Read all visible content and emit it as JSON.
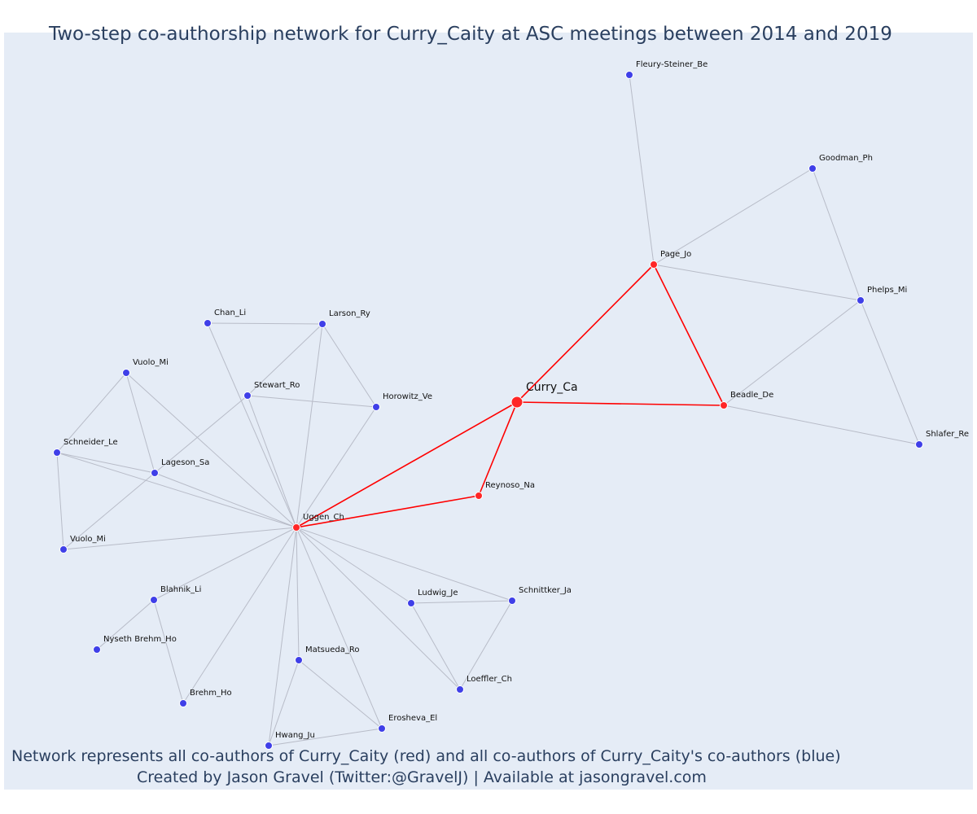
{
  "title": "Two-step co-authorship network for Curry_Caity at ASC meetings between 2014 and 2019",
  "footer": {
    "line1": "Network represents all co-authors of Curry_Caity (red) and all co-authors of Curry_Caity's co-authors (blue)",
    "line2": "Created by Jason Gravel (Twitter:@GravelJ) | Available at jasongravel.com"
  },
  "colors": {
    "background": "#e5ecf6",
    "focal_and_coauthor_nodes": "#ff2626",
    "second_step_nodes": "#3f3fe8",
    "direct_edges": "#ff0000",
    "indirect_edges": "#b8bcc8"
  },
  "chart_data": {
    "type": "network",
    "focal_node": "Curry_Ca",
    "nodes": [
      {
        "id": "Curry_Ca",
        "group": "focal"
      },
      {
        "id": "Page_Jo",
        "group": "coauthor"
      },
      {
        "id": "Beadle_De",
        "group": "coauthor"
      },
      {
        "id": "Reynoso_Na",
        "group": "coauthor"
      },
      {
        "id": "Uggen_Ch",
        "group": "coauthor"
      },
      {
        "id": "Fleury-Steiner_Be",
        "group": "second"
      },
      {
        "id": "Goodman_Ph",
        "group": "second"
      },
      {
        "id": "Phelps_Mi",
        "group": "second"
      },
      {
        "id": "Shlafer_Re",
        "group": "second"
      },
      {
        "id": "Chan_Li",
        "group": "second"
      },
      {
        "id": "Larson_Ry",
        "group": "second"
      },
      {
        "id": "Stewart_Ro",
        "group": "second"
      },
      {
        "id": "Horowitz_Ve",
        "group": "second"
      },
      {
        "id": "Vuolo_Mi",
        "group": "second"
      },
      {
        "id": "Schneider_Le",
        "group": "second"
      },
      {
        "id": "Lageson_Sa",
        "group": "second"
      },
      {
        "id": "Vuolo_Mi_2",
        "label": "Vuolo_Mi",
        "group": "second"
      },
      {
        "id": "Blahnik_Li",
        "group": "second"
      },
      {
        "id": "Nyseth Brehm_Ho",
        "group": "second"
      },
      {
        "id": "Brehm_Ho",
        "group": "second"
      },
      {
        "id": "Matsueda_Ro",
        "group": "second"
      },
      {
        "id": "Hwang_Ju",
        "group": "second"
      },
      {
        "id": "Erosheva_El",
        "group": "second"
      },
      {
        "id": "Ludwig_Je",
        "group": "second"
      },
      {
        "id": "Schnittker_Ja",
        "group": "second"
      },
      {
        "id": "Loeffler_Ch",
        "group": "second"
      }
    ],
    "edges": [
      [
        "Curry_Ca",
        "Page_Jo"
      ],
      [
        "Curry_Ca",
        "Beadle_De"
      ],
      [
        "Curry_Ca",
        "Reynoso_Na"
      ],
      [
        "Curry_Ca",
        "Uggen_Ch"
      ],
      [
        "Page_Jo",
        "Beadle_De"
      ],
      [
        "Reynoso_Na",
        "Uggen_Ch"
      ],
      [
        "Page_Jo",
        "Fleury-Steiner_Be"
      ],
      [
        "Page_Jo",
        "Goodman_Ph"
      ],
      [
        "Page_Jo",
        "Phelps_Mi"
      ],
      [
        "Goodman_Ph",
        "Phelps_Mi"
      ],
      [
        "Phelps_Mi",
        "Beadle_De"
      ],
      [
        "Phelps_Mi",
        "Shlafer_Re"
      ],
      [
        "Beadle_De",
        "Shlafer_Re"
      ],
      [
        "Chan_Li",
        "Larson_Ry"
      ],
      [
        "Chan_Li",
        "Uggen_Ch"
      ],
      [
        "Larson_Ry",
        "Stewart_Ro"
      ],
      [
        "Larson_Ry",
        "Horowitz_Ve"
      ],
      [
        "Larson_Ry",
        "Uggen_Ch"
      ],
      [
        "Stewart_Ro",
        "Horowitz_Ve"
      ],
      [
        "Stewart_Ro",
        "Uggen_Ch"
      ],
      [
        "Stewart_Ro",
        "Lageson_Sa"
      ],
      [
        "Horowitz_Ve",
        "Uggen_Ch"
      ],
      [
        "Vuolo_Mi",
        "Schneider_Le"
      ],
      [
        "Vuolo_Mi",
        "Lageson_Sa"
      ],
      [
        "Vuolo_Mi",
        "Uggen_Ch"
      ],
      [
        "Schneider_Le",
        "Lageson_Sa"
      ],
      [
        "Schneider_Le",
        "Uggen_Ch"
      ],
      [
        "Schneider_Le",
        "Vuolo_Mi_2"
      ],
      [
        "Lageson_Sa",
        "Uggen_Ch"
      ],
      [
        "Lageson_Sa",
        "Vuolo_Mi_2"
      ],
      [
        "Vuolo_Mi_2",
        "Uggen_Ch"
      ],
      [
        "Blahnik_Li",
        "Uggen_Ch"
      ],
      [
        "Blahnik_Li",
        "Nyseth Brehm_Ho"
      ],
      [
        "Blahnik_Li",
        "Brehm_Ho"
      ],
      [
        "Brehm_Ho",
        "Uggen_Ch"
      ],
      [
        "Matsueda_Ro",
        "Uggen_Ch"
      ],
      [
        "Matsueda_Ro",
        "Hwang_Ju"
      ],
      [
        "Matsueda_Ro",
        "Erosheva_El"
      ],
      [
        "Hwang_Ju",
        "Uggen_Ch"
      ],
      [
        "Hwang_Ju",
        "Erosheva_El"
      ],
      [
        "Erosheva_El",
        "Uggen_Ch"
      ],
      [
        "Ludwig_Je",
        "Uggen_Ch"
      ],
      [
        "Ludwig_Je",
        "Schnittker_Ja"
      ],
      [
        "Ludwig_Je",
        "Loeffler_Ch"
      ],
      [
        "Schnittker_Ja",
        "Uggen_Ch"
      ],
      [
        "Schnittker_Ja",
        "Loeffler_Ch"
      ],
      [
        "Loeffler_Ch",
        "Uggen_Ch"
      ]
    ]
  }
}
